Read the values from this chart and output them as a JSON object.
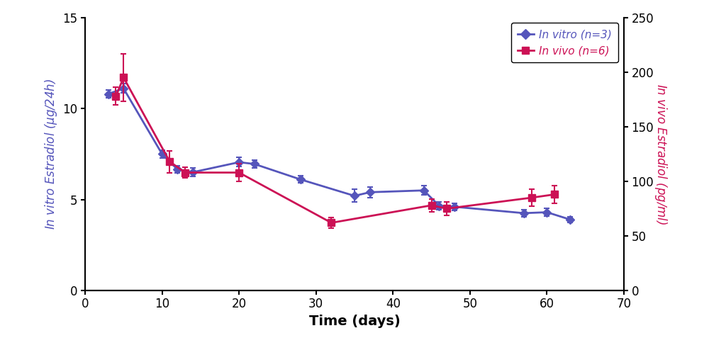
{
  "invitro_x": [
    3,
    5,
    10,
    12,
    14,
    20,
    22,
    28,
    35,
    37,
    44,
    46,
    48,
    57,
    60,
    63
  ],
  "invitro_y": [
    10.8,
    11.1,
    7.5,
    6.65,
    6.5,
    7.05,
    6.95,
    6.1,
    5.2,
    5.4,
    5.5,
    4.65,
    4.6,
    4.25,
    4.3,
    3.9
  ],
  "invitro_yerr": [
    0.2,
    0.25,
    0.22,
    0.2,
    0.22,
    0.25,
    0.2,
    0.2,
    0.35,
    0.3,
    0.25,
    0.22,
    0.2,
    0.2,
    0.2,
    0.15
  ],
  "invivo_x": [
    4,
    5,
    11,
    13,
    20,
    32,
    45,
    47,
    58,
    61
  ],
  "invivo_y": [
    178,
    195,
    118,
    108,
    108,
    62,
    78,
    75,
    85,
    88
  ],
  "invivo_yerr": [
    8,
    22,
    10,
    5,
    8,
    5,
    6,
    6,
    8,
    8
  ],
  "invitro_color": "#5555bb",
  "invivo_color": "#cc1155",
  "left_ylabel": "In vitro Estradiol (μg/24h)",
  "right_ylabel": "In vivo Estradiol (pg/ml)",
  "xlabel": "Time (days)",
  "xlim": [
    0,
    70
  ],
  "ylim_left": [
    0,
    15
  ],
  "ylim_right": [
    0,
    250
  ],
  "left_yticks": [
    0,
    5,
    10,
    15
  ],
  "right_yticks": [
    0,
    50,
    100,
    150,
    200,
    250
  ],
  "xticks": [
    0,
    10,
    20,
    30,
    40,
    50,
    60,
    70
  ],
  "legend_invitro": "In vitro (n=3)",
  "legend_invivo": "In vivo (n=6)"
}
